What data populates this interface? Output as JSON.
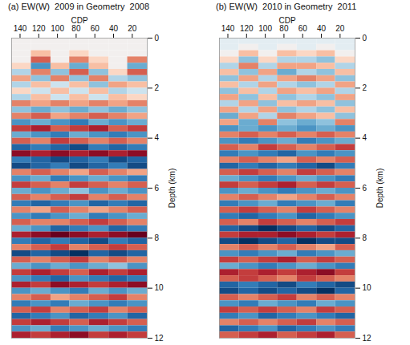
{
  "chart_data": [
    {
      "type": "heatmap",
      "title": "(a) EW(W)  2009 in Geometry  2008",
      "x_label": "CDP",
      "y_label": "Depth (km)",
      "xlim": [
        149,
        4
      ],
      "xticks": [
        140,
        120,
        100,
        80,
        60,
        40,
        20
      ],
      "ylim": [
        0,
        12
      ],
      "yticks": [
        0,
        2,
        4,
        6,
        8,
        10,
        12
      ],
      "value_range": [
        -1,
        1
      ],
      "cdp_edges": [
        149,
        128,
        107,
        87,
        66,
        45,
        25,
        4
      ],
      "depth_edges": [
        0,
        0.25,
        0.5,
        0.75,
        1,
        1.25,
        1.5,
        1.75,
        2,
        2.25,
        2.5,
        2.75,
        3,
        3.25,
        3.5,
        3.75,
        4,
        4.25,
        4.5,
        4.75,
        5,
        5.25,
        5.5,
        5.75,
        6,
        6.25,
        6.5,
        6.75,
        7,
        7.25,
        7.5,
        7.75,
        8,
        8.25,
        8.5,
        8.75,
        9,
        9.25,
        9.5,
        9.75,
        10,
        10.25,
        10.5,
        10.75,
        11,
        11.25,
        11.5,
        11.75,
        12
      ],
      "amplitude": [
        [
          0,
          0,
          0,
          0,
          0,
          0,
          0
        ],
        [
          0,
          0,
          0,
          0,
          0,
          0,
          0
        ],
        [
          0,
          0.3,
          0,
          0.2,
          0,
          0,
          0
        ],
        [
          0,
          0.6,
          0,
          0.5,
          0.2,
          0,
          0.5
        ],
        [
          0.2,
          -0.6,
          0.3,
          -0.5,
          0.3,
          0,
          -0.5
        ],
        [
          -0.3,
          0.5,
          -0.4,
          0.6,
          -0.4,
          0.2,
          0.6
        ],
        [
          0.4,
          -0.4,
          0.5,
          -0.4,
          0.5,
          -0.3,
          -0.4
        ],
        [
          -0.3,
          0.3,
          -0.2,
          0.3,
          -0.4,
          0.4,
          0.3
        ],
        [
          0.2,
          -0.2,
          0.3,
          -0.2,
          0.3,
          -0.3,
          -0.2
        ],
        [
          -0.3,
          0.3,
          -0.2,
          0.3,
          -0.2,
          0.3,
          0.2
        ],
        [
          0.5,
          0.4,
          0.5,
          0.4,
          0.5,
          0.4,
          0.5
        ],
        [
          -0.4,
          -0.5,
          -0.4,
          -0.5,
          -0.4,
          -0.5,
          -0.4
        ],
        [
          0.5,
          0.6,
          0.4,
          0.5,
          0.6,
          0.5,
          0.4
        ],
        [
          -0.6,
          -0.5,
          -0.6,
          -0.7,
          -0.5,
          -0.6,
          -0.5
        ],
        [
          0.7,
          0.8,
          0.6,
          0.7,
          0.8,
          0.6,
          0.7
        ],
        [
          -0.5,
          -0.6,
          -0.7,
          -0.5,
          -0.6,
          -0.7,
          -0.6
        ],
        [
          0.6,
          0.5,
          0.7,
          0.6,
          0.5,
          0.6,
          0.5
        ],
        [
          -0.8,
          -0.7,
          -0.8,
          -0.9,
          -0.7,
          -0.8,
          -0.7
        ],
        [
          0.9,
          0.8,
          0.9,
          0.8,
          0.9,
          0.8,
          0.9
        ],
        [
          -0.7,
          -0.8,
          -0.9,
          -0.8,
          -0.7,
          -0.9,
          -0.8
        ],
        [
          -0.9,
          -0.8,
          -0.7,
          -0.9,
          -0.8,
          -0.7,
          -0.9
        ],
        [
          0.5,
          0.6,
          0.5,
          0.4,
          0.6,
          0.5,
          0.4
        ],
        [
          -0.6,
          -0.5,
          -0.7,
          -0.6,
          -0.5,
          -0.6,
          -0.7
        ],
        [
          0.7,
          0.6,
          0.5,
          0.7,
          0.6,
          0.5,
          0.6
        ],
        [
          -0.5,
          -0.6,
          -0.5,
          -0.4,
          -0.6,
          -0.5,
          -0.6
        ],
        [
          0.6,
          0.5,
          0.6,
          0.7,
          0.5,
          0.6,
          0.5
        ],
        [
          -0.7,
          -0.8,
          -0.7,
          -0.6,
          -0.8,
          -0.7,
          -0.8
        ],
        [
          0.5,
          0.4,
          0.6,
          0.5,
          0.4,
          0.5,
          0.6
        ],
        [
          -0.6,
          -0.7,
          -0.6,
          -0.5,
          -0.7,
          -0.6,
          -0.5
        ],
        [
          0.6,
          0.5,
          0.5,
          0.6,
          0.7,
          0.6,
          0.5
        ],
        [
          -0.5,
          -0.6,
          -0.8,
          -0.7,
          -0.6,
          -0.8,
          -0.7
        ],
        [
          0.8,
          0.9,
          1.0,
          0.9,
          0.8,
          0.9,
          1.0
        ],
        [
          -0.7,
          -0.8,
          -0.7,
          -0.8,
          -0.9,
          -0.7,
          -0.8
        ],
        [
          0.5,
          0.6,
          0.7,
          0.5,
          0.6,
          0.7,
          0.6
        ],
        [
          -0.9,
          -0.8,
          -0.9,
          -1.0,
          -0.8,
          -0.9,
          -0.8
        ],
        [
          0.6,
          0.5,
          0.6,
          0.7,
          0.5,
          0.6,
          0.5
        ],
        [
          -0.5,
          -0.6,
          -0.5,
          -0.6,
          -0.5,
          -0.4,
          -0.6
        ],
        [
          0.7,
          0.8,
          0.7,
          0.6,
          0.8,
          0.7,
          0.8
        ],
        [
          -0.6,
          -0.7,
          -0.8,
          -0.6,
          -0.7,
          -0.8,
          -0.7
        ],
        [
          0.8,
          0.7,
          0.9,
          0.8,
          0.7,
          0.8,
          0.9
        ],
        [
          -0.6,
          -0.5,
          -0.6,
          -0.7,
          -0.5,
          -0.6,
          -0.5
        ],
        [
          0.5,
          0.6,
          0.4,
          0.5,
          0.6,
          0.7,
          0.5
        ],
        [
          -0.7,
          -0.6,
          -0.7,
          -0.5,
          -0.6,
          -0.7,
          -0.6
        ],
        [
          0.6,
          0.7,
          0.5,
          0.6,
          0.7,
          0.5,
          0.6
        ],
        [
          -0.8,
          -0.7,
          -0.6,
          -0.8,
          -0.7,
          -0.6,
          -0.8
        ],
        [
          0.7,
          0.8,
          0.7,
          0.6,
          0.8,
          0.7,
          0.6
        ],
        [
          -0.6,
          -0.5,
          -0.7,
          -0.6,
          -0.5,
          -0.6,
          -0.7
        ],
        [
          0.8,
          0.7,
          0.8,
          0.9,
          0.7,
          0.8,
          0.7
        ]
      ]
    },
    {
      "type": "heatmap",
      "title": "(b) EW(W)  2010 in Geometry  2011",
      "x_label": "CDP",
      "y_label": "Depth (km)",
      "xlim": [
        149,
        4
      ],
      "xticks": [
        140,
        120,
        100,
        80,
        60,
        40,
        20
      ],
      "ylim": [
        0,
        12
      ],
      "yticks": [
        0,
        2,
        4,
        6,
        8,
        10,
        12
      ],
      "value_range": [
        -1,
        1
      ],
      "cdp_edges": [
        149,
        128,
        107,
        87,
        66,
        45,
        25,
        4
      ],
      "depth_edges": [
        0,
        0.25,
        0.5,
        0.75,
        1,
        1.25,
        1.5,
        1.75,
        2,
        2.25,
        2.5,
        2.75,
        3,
        3.25,
        3.5,
        3.75,
        4,
        4.25,
        4.5,
        4.75,
        5,
        5.25,
        5.5,
        5.75,
        6,
        6.25,
        6.5,
        6.75,
        7,
        7.25,
        7.5,
        7.75,
        8,
        8.25,
        8.5,
        8.75,
        9,
        9.25,
        9.5,
        9.75,
        10,
        10.25,
        10.5,
        10.75,
        11,
        11.25,
        11.5,
        11.75,
        12
      ],
      "amplitude": [
        [
          -0.1,
          -0.1,
          -0.1,
          -0.1,
          -0.1,
          -0.1,
          -0.1
        ],
        [
          -0.1,
          0,
          -0.1,
          0,
          -0.1,
          0,
          -0.1
        ],
        [
          0,
          0.3,
          0,
          0.3,
          0.2,
          0.3,
          0
        ],
        [
          0.2,
          -0.4,
          0.2,
          -0.3,
          -0.3,
          -0.4,
          0.2
        ],
        [
          -0.3,
          0.5,
          -0.3,
          0.4,
          0.4,
          0.3,
          -0.3
        ],
        [
          0.3,
          -0.4,
          0.4,
          -0.5,
          -0.3,
          -0.4,
          0.3
        ],
        [
          -0.4,
          0.4,
          -0.3,
          0.4,
          0.5,
          0.4,
          -0.4
        ],
        [
          0.3,
          -0.3,
          0.4,
          -0.3,
          -0.4,
          -0.3,
          0.4
        ],
        [
          -0.4,
          0.3,
          -0.3,
          0.4,
          0.3,
          0.4,
          -0.3
        ],
        [
          0.4,
          -0.4,
          0.3,
          -0.4,
          -0.3,
          -0.4,
          0.4
        ],
        [
          -0.3,
          0.4,
          -0.4,
          0.3,
          0.4,
          0.3,
          -0.4
        ],
        [
          0.4,
          -0.3,
          0.4,
          -0.4,
          -0.3,
          -0.4,
          0.3
        ],
        [
          -0.5,
          0.4,
          -0.3,
          0.5,
          0.4,
          0.3,
          -0.4
        ],
        [
          0.4,
          -0.5,
          0.5,
          -0.4,
          -0.5,
          -0.4,
          0.5
        ],
        [
          -0.6,
          -0.5,
          -0.6,
          -0.5,
          -0.6,
          -0.5,
          -0.6
        ],
        [
          0.5,
          0.6,
          0.5,
          0.6,
          0.5,
          0.6,
          0.5
        ],
        [
          -0.6,
          -0.7,
          -0.6,
          -0.5,
          -0.7,
          -0.6,
          -0.5
        ],
        [
          0.6,
          0.5,
          0.7,
          0.6,
          0.5,
          0.6,
          0.7
        ],
        [
          -0.7,
          -0.6,
          -0.7,
          -0.8,
          -0.6,
          -0.7,
          -0.6
        ],
        [
          0.5,
          0.6,
          0.5,
          0.4,
          0.6,
          0.5,
          0.6
        ],
        [
          -0.8,
          -0.7,
          -0.8,
          -0.7,
          -0.8,
          -0.9,
          -0.7
        ],
        [
          0.6,
          0.7,
          0.6,
          0.5,
          0.7,
          0.6,
          0.5
        ],
        [
          -0.5,
          -0.6,
          -0.7,
          -0.6,
          -0.5,
          -0.6,
          -0.7
        ],
        [
          0.7,
          0.6,
          0.7,
          0.8,
          0.6,
          0.7,
          0.6
        ],
        [
          -0.6,
          -0.5,
          -0.6,
          -0.7,
          -0.6,
          -0.5,
          -0.6
        ],
        [
          0.5,
          0.6,
          0.5,
          0.4,
          0.5,
          0.6,
          0.5
        ],
        [
          -0.7,
          -0.6,
          -0.5,
          -0.7,
          -0.6,
          -0.5,
          -0.7
        ],
        [
          0.6,
          0.7,
          0.6,
          0.5,
          0.7,
          0.6,
          0.5
        ],
        [
          -0.7,
          -0.8,
          -0.7,
          -0.6,
          -0.8,
          -0.7,
          -0.6
        ],
        [
          0.6,
          0.5,
          0.7,
          0.6,
          0.5,
          0.6,
          0.7
        ],
        [
          -0.8,
          -0.9,
          -1.0,
          -0.9,
          -0.8,
          -0.9,
          -0.8
        ],
        [
          0.7,
          0.8,
          0.8,
          0.9,
          0.8,
          0.7,
          0.8
        ],
        [
          -0.9,
          -1.0,
          -0.9,
          -0.8,
          -1.0,
          -0.9,
          -0.9
        ],
        [
          0.5,
          0.6,
          0.5,
          0.6,
          0.5,
          0.4,
          0.6
        ],
        [
          -0.6,
          -0.7,
          -0.6,
          -0.5,
          -0.7,
          -0.6,
          -0.5
        ],
        [
          0.7,
          0.6,
          0.7,
          0.8,
          0.6,
          0.7,
          0.6
        ],
        [
          -0.5,
          -0.6,
          -0.7,
          -0.6,
          -0.5,
          -0.6,
          -0.7
        ],
        [
          0.8,
          0.7,
          0.8,
          0.7,
          0.8,
          0.9,
          0.7
        ],
        [
          0.6,
          0.7,
          0.6,
          0.5,
          0.7,
          0.6,
          0.5
        ],
        [
          -0.8,
          -0.7,
          -0.8,
          -0.9,
          -0.7,
          -0.8,
          -0.9
        ],
        [
          -0.9,
          -0.8,
          -0.9,
          -0.8,
          -0.9,
          -1.0,
          -0.8
        ],
        [
          0.6,
          0.5,
          0.6,
          0.7,
          0.5,
          0.6,
          0.5
        ],
        [
          -0.6,
          -0.7,
          -0.5,
          -0.6,
          -0.7,
          -0.5,
          -0.6
        ],
        [
          0.7,
          0.6,
          0.7,
          0.6,
          0.5,
          0.7,
          0.6
        ],
        [
          -0.7,
          -0.6,
          -0.8,
          -0.7,
          -0.6,
          -0.7,
          -0.8
        ],
        [
          0.5,
          0.6,
          0.5,
          0.6,
          0.7,
          0.5,
          0.6
        ],
        [
          -0.8,
          -0.7,
          -0.6,
          -0.8,
          -0.7,
          -0.6,
          -0.7
        ],
        [
          0.6,
          0.7,
          0.8,
          0.6,
          0.7,
          0.8,
          0.6
        ]
      ]
    }
  ]
}
